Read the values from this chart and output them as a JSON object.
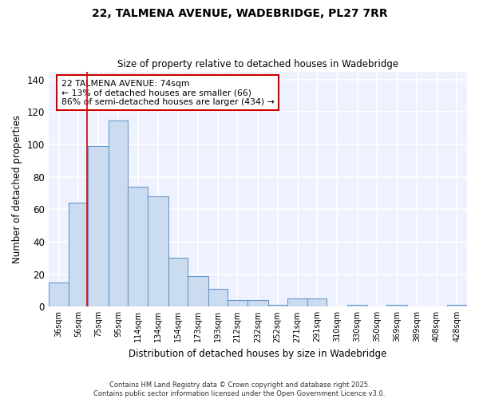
{
  "title_line1": "22, TALMENA AVENUE, WADEBRIDGE, PL27 7RR",
  "title_line2": "Size of property relative to detached houses in Wadebridge",
  "xlabel": "Distribution of detached houses by size in Wadebridge",
  "ylabel": "Number of detached properties",
  "annotation_line1": "22 TALMENA AVENUE: 74sqm",
  "annotation_line2": "← 13% of detached houses are smaller (66)",
  "annotation_line3": "86% of semi-detached houses are larger (434) →",
  "property_size": 74,
  "bins": [
    36,
    56,
    75,
    95,
    114,
    134,
    154,
    173,
    193,
    212,
    232,
    252,
    271,
    291,
    310,
    330,
    350,
    369,
    389,
    408,
    428
  ],
  "counts": [
    15,
    64,
    99,
    115,
    74,
    68,
    30,
    19,
    11,
    4,
    4,
    1,
    5,
    5,
    0,
    1,
    0,
    1,
    0,
    0,
    1
  ],
  "bar_color": "#ccdcf0",
  "bar_edge_color": "#6699cc",
  "marker_color": "#cc0000",
  "ylim": [
    0,
    145
  ],
  "yticks": [
    0,
    20,
    40,
    60,
    80,
    100,
    120,
    140
  ],
  "background_color": "#ffffff",
  "plot_bg_color": "#eef2ff",
  "grid_color": "#ffffff",
  "footer_line1": "Contains HM Land Registry data © Crown copyright and database right 2025.",
  "footer_line2": "Contains public sector information licensed under the Open Government Licence v3.0."
}
